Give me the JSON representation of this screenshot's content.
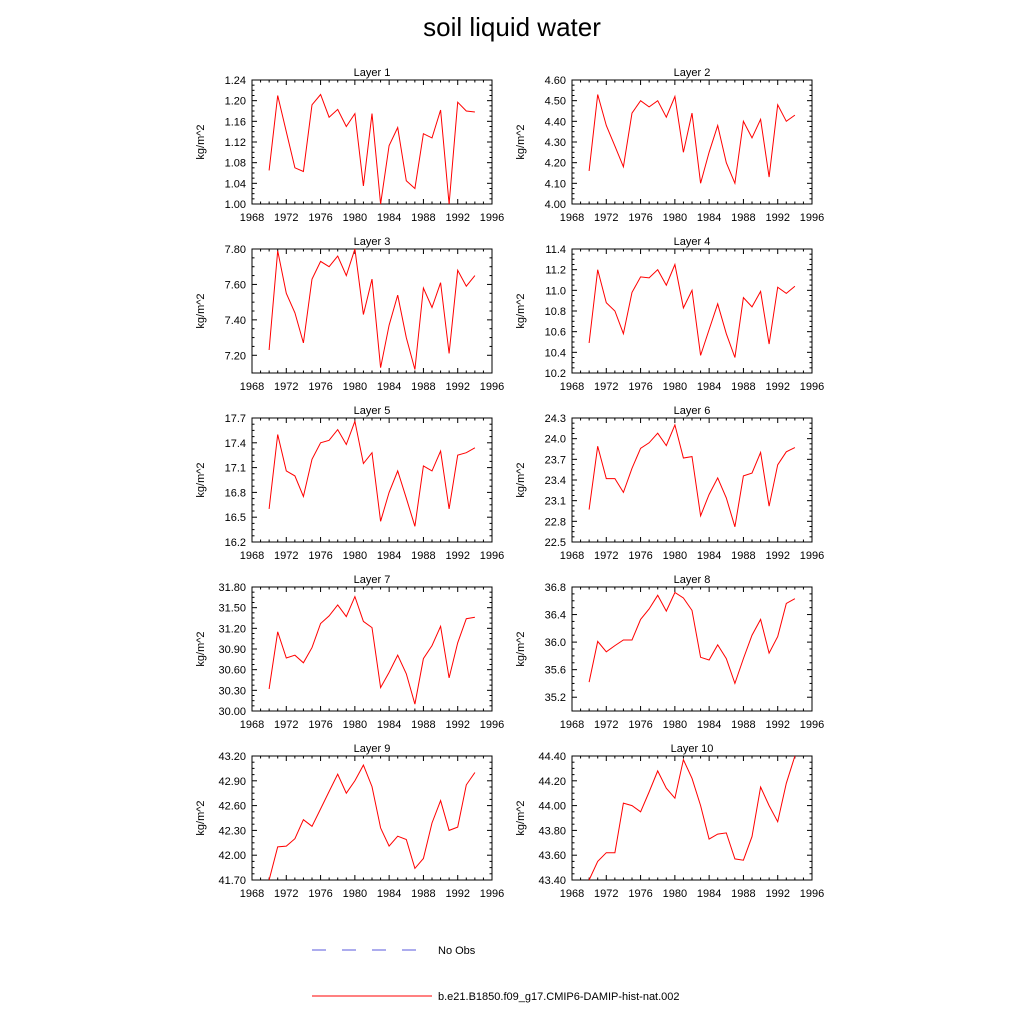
{
  "figure": {
    "title": "soil liquid water"
  },
  "legend": {
    "entries": [
      {
        "label": "No Obs",
        "color": "#5a5adc",
        "style": "dashed"
      },
      {
        "label": "b.e21.B1850.f09_g17.CMIP6-DAMIP-hist-nat.002",
        "color": "#ff0000",
        "style": "solid"
      }
    ]
  },
  "chart_data": [
    {
      "type": "line",
      "title": "Layer 1",
      "ylabel": "kg/m^2",
      "xlim": [
        1968,
        1996
      ],
      "xticks": [
        1968,
        1972,
        1976,
        1980,
        1984,
        1988,
        1992,
        1996
      ],
      "ylim": [
        1.0,
        1.24
      ],
      "yticks": [
        "1.00",
        "1.04",
        "1.08",
        "1.12",
        "1.16",
        "1.20",
        "1.24"
      ],
      "x": [
        1970,
        1971,
        1972,
        1973,
        1974,
        1975,
        1976,
        1977,
        1978,
        1979,
        1980,
        1981,
        1982,
        1983,
        1984,
        1985,
        1986,
        1987,
        1988,
        1989,
        1990,
        1991,
        1992,
        1993,
        1994
      ],
      "series": [
        {
          "name": "b.e21.B1850.f09_g17.CMIP6-DAMIP-hist-nat.002",
          "color": "#ff0000",
          "values": [
            1.065,
            1.21,
            1.14,
            1.07,
            1.063,
            1.192,
            1.212,
            1.168,
            1.183,
            1.15,
            1.175,
            1.035,
            1.175,
            1.0,
            1.113,
            1.148,
            1.045,
            1.03,
            1.136,
            1.128,
            1.182,
            1.0,
            1.197,
            1.18,
            1.178
          ]
        }
      ]
    },
    {
      "type": "line",
      "title": "Layer 2",
      "ylabel": "kg/m^2",
      "xlim": [
        1968,
        1996
      ],
      "xticks": [
        1968,
        1972,
        1976,
        1980,
        1984,
        1988,
        1992,
        1996
      ],
      "ylim": [
        4.0,
        4.6
      ],
      "yticks": [
        "4.00",
        "4.10",
        "4.20",
        "4.30",
        "4.40",
        "4.50",
        "4.60"
      ],
      "x": [
        1970,
        1971,
        1972,
        1973,
        1974,
        1975,
        1976,
        1977,
        1978,
        1979,
        1980,
        1981,
        1982,
        1983,
        1984,
        1985,
        1986,
        1987,
        1988,
        1989,
        1990,
        1991,
        1992,
        1993,
        1994
      ],
      "series": [
        {
          "name": "b.e21.B1850.f09_g17.CMIP6-DAMIP-hist-nat.002",
          "color": "#ff0000",
          "values": [
            4.16,
            4.53,
            4.38,
            4.28,
            4.18,
            4.44,
            4.5,
            4.47,
            4.5,
            4.42,
            4.52,
            4.25,
            4.44,
            4.1,
            4.25,
            4.38,
            4.2,
            4.1,
            4.4,
            4.32,
            4.41,
            4.13,
            4.48,
            4.4,
            4.43
          ]
        }
      ]
    },
    {
      "type": "line",
      "title": "Layer 3",
      "ylabel": "kg/m^2",
      "xlim": [
        1968,
        1996
      ],
      "xticks": [
        1968,
        1972,
        1976,
        1980,
        1984,
        1988,
        1992,
        1996
      ],
      "ylim": [
        7.1,
        7.8
      ],
      "yticks": [
        "7.20",
        "7.40",
        "7.60",
        "7.80"
      ],
      "x": [
        1970,
        1971,
        1972,
        1973,
        1974,
        1975,
        1976,
        1977,
        1978,
        1979,
        1980,
        1981,
        1982,
        1983,
        1984,
        1985,
        1986,
        1987,
        1988,
        1989,
        1990,
        1991,
        1992,
        1993,
        1994
      ],
      "series": [
        {
          "name": "b.e21.B1850.f09_g17.CMIP6-DAMIP-hist-nat.002",
          "color": "#ff0000",
          "values": [
            7.23,
            7.79,
            7.55,
            7.44,
            7.27,
            7.63,
            7.73,
            7.7,
            7.76,
            7.65,
            7.8,
            7.43,
            7.63,
            7.13,
            7.37,
            7.54,
            7.3,
            7.12,
            7.58,
            7.47,
            7.61,
            7.21,
            7.68,
            7.59,
            7.65
          ]
        }
      ]
    },
    {
      "type": "line",
      "title": "Layer 4",
      "ylabel": "kg/m^2",
      "xlim": [
        1968,
        1996
      ],
      "xticks": [
        1968,
        1972,
        1976,
        1980,
        1984,
        1988,
        1992,
        1996
      ],
      "ylim": [
        10.2,
        11.4
      ],
      "yticks": [
        "10.2",
        "10.4",
        "10.6",
        "10.8",
        "11.0",
        "11.2",
        "11.4"
      ],
      "x": [
        1970,
        1971,
        1972,
        1973,
        1974,
        1975,
        1976,
        1977,
        1978,
        1979,
        1980,
        1981,
        1982,
        1983,
        1984,
        1985,
        1986,
        1987,
        1988,
        1989,
        1990,
        1991,
        1992,
        1993,
        1994
      ],
      "series": [
        {
          "name": "b.e21.B1850.f09_g17.CMIP6-DAMIP-hist-nat.002",
          "color": "#ff0000",
          "values": [
            10.49,
            11.2,
            10.88,
            10.8,
            10.58,
            10.98,
            11.13,
            11.12,
            11.2,
            11.05,
            11.25,
            10.83,
            11.0,
            10.37,
            10.62,
            10.87,
            10.58,
            10.35,
            10.93,
            10.84,
            10.99,
            10.48,
            11.03,
            10.97,
            11.04
          ]
        }
      ]
    },
    {
      "type": "line",
      "title": "Layer 5",
      "ylabel": "kg/m^2",
      "xlim": [
        1968,
        1996
      ],
      "xticks": [
        1968,
        1972,
        1976,
        1980,
        1984,
        1988,
        1992,
        1996
      ],
      "ylim": [
        16.2,
        17.7
      ],
      "yticks": [
        "16.2",
        "16.5",
        "16.8",
        "17.1",
        "17.4",
        "17.7"
      ],
      "x": [
        1970,
        1971,
        1972,
        1973,
        1974,
        1975,
        1976,
        1977,
        1978,
        1979,
        1980,
        1981,
        1982,
        1983,
        1984,
        1985,
        1986,
        1987,
        1988,
        1989,
        1990,
        1991,
        1992,
        1993,
        1994
      ],
      "series": [
        {
          "name": "b.e21.B1850.f09_g17.CMIP6-DAMIP-hist-nat.002",
          "color": "#ff0000",
          "values": [
            16.6,
            17.5,
            17.06,
            17.0,
            16.75,
            17.2,
            17.4,
            17.43,
            17.56,
            17.38,
            17.66,
            17.15,
            17.28,
            16.45,
            16.8,
            17.06,
            16.73,
            16.39,
            17.12,
            17.06,
            17.3,
            16.6,
            17.25,
            17.28,
            17.34
          ]
        }
      ]
    },
    {
      "type": "line",
      "title": "Layer 6",
      "ylabel": "kg/m^2",
      "xlim": [
        1968,
        1996
      ],
      "xticks": [
        1968,
        1972,
        1976,
        1980,
        1984,
        1988,
        1992,
        1996
      ],
      "ylim": [
        22.5,
        24.3
      ],
      "yticks": [
        "22.5",
        "22.8",
        "23.1",
        "23.4",
        "23.7",
        "24.0",
        "24.3"
      ],
      "x": [
        1970,
        1971,
        1972,
        1973,
        1974,
        1975,
        1976,
        1977,
        1978,
        1979,
        1980,
        1981,
        1982,
        1983,
        1984,
        1985,
        1986,
        1987,
        1988,
        1989,
        1990,
        1991,
        1992,
        1993,
        1994
      ],
      "series": [
        {
          "name": "b.e21.B1850.f09_g17.CMIP6-DAMIP-hist-nat.002",
          "color": "#ff0000",
          "values": [
            22.97,
            23.89,
            23.42,
            23.42,
            23.22,
            23.57,
            23.86,
            23.94,
            24.08,
            23.9,
            24.2,
            23.72,
            23.74,
            22.88,
            23.19,
            23.43,
            23.14,
            22.72,
            23.46,
            23.5,
            23.8,
            23.02,
            23.62,
            23.81,
            23.87
          ]
        }
      ]
    },
    {
      "type": "line",
      "title": "Layer 7",
      "ylabel": "kg/m^2",
      "xlim": [
        1968,
        1996
      ],
      "xticks": [
        1968,
        1972,
        1976,
        1980,
        1984,
        1988,
        1992,
        1996
      ],
      "ylim": [
        30.0,
        31.8
      ],
      "yticks": [
        "30.00",
        "30.30",
        "30.60",
        "30.90",
        "31.20",
        "31.50",
        "31.80"
      ],
      "x": [
        1970,
        1971,
        1972,
        1973,
        1974,
        1975,
        1976,
        1977,
        1978,
        1979,
        1980,
        1981,
        1982,
        1983,
        1984,
        1985,
        1986,
        1987,
        1988,
        1989,
        1990,
        1991,
        1992,
        1993,
        1994
      ],
      "series": [
        {
          "name": "b.e21.B1850.f09_g17.CMIP6-DAMIP-hist-nat.002",
          "color": "#ff0000",
          "values": [
            30.32,
            31.15,
            30.77,
            30.81,
            30.7,
            30.92,
            31.27,
            31.38,
            31.54,
            31.37,
            31.66,
            31.3,
            31.21,
            30.34,
            30.56,
            30.81,
            30.54,
            30.1,
            30.76,
            30.95,
            31.23,
            30.48,
            30.99,
            31.34,
            31.36
          ]
        }
      ]
    },
    {
      "type": "line",
      "title": "Layer 8",
      "ylabel": "kg/m^2",
      "xlim": [
        1968,
        1996
      ],
      "xticks": [
        1968,
        1972,
        1976,
        1980,
        1984,
        1988,
        1992,
        1996
      ],
      "ylim": [
        35.0,
        36.8
      ],
      "yticks": [
        "35.2",
        "35.6",
        "36.0",
        "36.4",
        "36.8"
      ],
      "x": [
        1970,
        1971,
        1972,
        1973,
        1974,
        1975,
        1976,
        1977,
        1978,
        1979,
        1980,
        1981,
        1982,
        1983,
        1984,
        1985,
        1986,
        1987,
        1988,
        1989,
        1990,
        1991,
        1992,
        1993,
        1994
      ],
      "series": [
        {
          "name": "b.e21.B1850.f09_g17.CMIP6-DAMIP-hist-nat.002",
          "color": "#ff0000",
          "values": [
            35.42,
            36.01,
            35.86,
            35.95,
            36.03,
            36.03,
            36.33,
            36.48,
            36.68,
            36.45,
            36.72,
            36.64,
            36.46,
            35.78,
            35.74,
            35.96,
            35.76,
            35.4,
            35.76,
            36.1,
            36.33,
            35.84,
            36.08,
            36.56,
            36.63
          ]
        }
      ]
    },
    {
      "type": "line",
      "title": "Layer 9",
      "ylabel": "kg/m^2",
      "xlim": [
        1968,
        1996
      ],
      "xticks": [
        1968,
        1972,
        1976,
        1980,
        1984,
        1988,
        1992,
        1996
      ],
      "ylim": [
        41.7,
        43.2
      ],
      "yticks": [
        "41.70",
        "42.00",
        "42.30",
        "42.60",
        "42.90",
        "43.20"
      ],
      "x": [
        1970,
        1971,
        1972,
        1973,
        1974,
        1975,
        1976,
        1977,
        1978,
        1979,
        1980,
        1981,
        1982,
        1983,
        1984,
        1985,
        1986,
        1987,
        1988,
        1989,
        1990,
        1991,
        1992,
        1993,
        1994
      ],
      "series": [
        {
          "name": "b.e21.B1850.f09_g17.CMIP6-DAMIP-hist-nat.002",
          "color": "#ff0000",
          "values": [
            41.7,
            42.1,
            42.11,
            42.2,
            42.43,
            42.35,
            42.56,
            42.77,
            42.98,
            42.75,
            42.9,
            43.09,
            42.83,
            42.33,
            42.11,
            42.23,
            42.19,
            41.84,
            41.96,
            42.39,
            42.66,
            42.3,
            42.34,
            42.85,
            43.0
          ]
        }
      ]
    },
    {
      "type": "line",
      "title": "Layer 10",
      "ylabel": "kg/m^2",
      "xlim": [
        1968,
        1996
      ],
      "xticks": [
        1968,
        1972,
        1976,
        1980,
        1984,
        1988,
        1992,
        1996
      ],
      "ylim": [
        43.4,
        44.4
      ],
      "yticks": [
        "43.40",
        "43.60",
        "43.80",
        "44.00",
        "44.20",
        "44.40"
      ],
      "x": [
        1970,
        1971,
        1972,
        1973,
        1974,
        1975,
        1976,
        1977,
        1978,
        1979,
        1980,
        1981,
        1982,
        1983,
        1984,
        1985,
        1986,
        1987,
        1988,
        1989,
        1990,
        1991,
        1992,
        1993,
        1994
      ],
      "series": [
        {
          "name": "b.e21.B1850.f09_g17.CMIP6-DAMIP-hist-nat.002",
          "color": "#ff0000",
          "values": [
            43.4,
            43.55,
            43.62,
            43.62,
            44.02,
            44.0,
            43.95,
            44.11,
            44.28,
            44.14,
            44.06,
            44.37,
            44.22,
            44.0,
            43.73,
            43.77,
            43.78,
            43.57,
            43.56,
            43.75,
            44.15,
            44.0,
            43.87,
            44.18,
            44.4
          ]
        }
      ]
    }
  ]
}
